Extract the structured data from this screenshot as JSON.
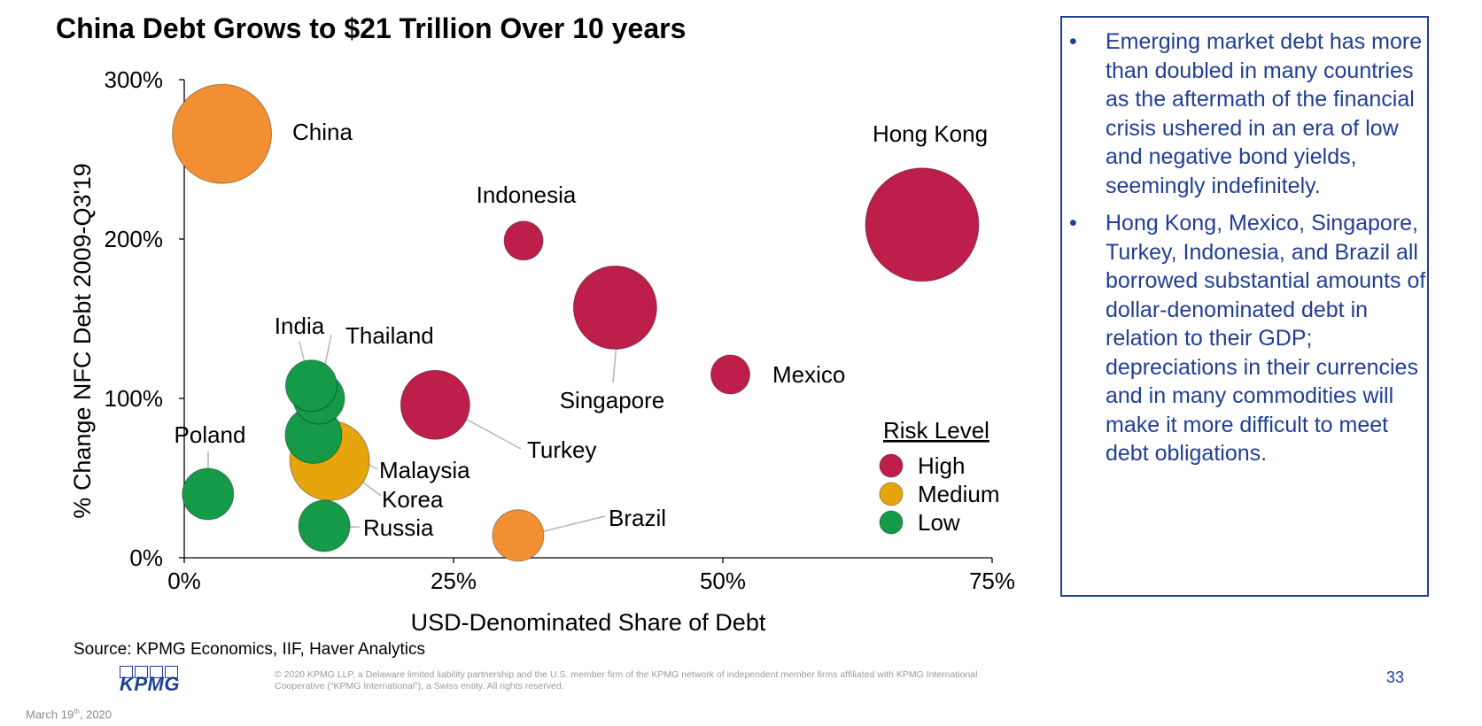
{
  "title": "China Debt Grows to $21 Trillion Over 10 years",
  "chart_data": {
    "type": "bubble",
    "xlabel": "USD-Denominated Share of Debt",
    "ylabel": "% Change NFC Debt 2009-Q3'19",
    "xlim": [
      0,
      75
    ],
    "ylim": [
      0,
      300
    ],
    "x_ticks": [
      "0%",
      "25%",
      "50%",
      "75%"
    ],
    "y_ticks": [
      "0%",
      "100%",
      "200%",
      "300%"
    ],
    "legend_title": "Risk Level",
    "legend": [
      {
        "label": "High",
        "color": "#be1e4a"
      },
      {
        "label": "Medium",
        "color": "#e6a50c"
      },
      {
        "label": "Low",
        "color": "#159a47"
      }
    ],
    "points": [
      {
        "name": "China",
        "x": 3.5,
        "y": 266,
        "size": 56,
        "risk": "Medium",
        "color": "#f28f33"
      },
      {
        "name": "Hong Kong",
        "x": 68.5,
        "y": 209,
        "size": 64,
        "risk": "High",
        "color": "#be1e4a"
      },
      {
        "name": "Indonesia",
        "x": 31.5,
        "y": 199,
        "size": 22,
        "risk": "High",
        "color": "#be1e4a"
      },
      {
        "name": "Singapore",
        "x": 40,
        "y": 157,
        "size": 47,
        "risk": "High",
        "color": "#be1e4a"
      },
      {
        "name": "Mexico",
        "x": 50.7,
        "y": 115,
        "size": 22,
        "risk": "High",
        "color": "#be1e4a"
      },
      {
        "name": "Turkey",
        "x": 23.3,
        "y": 96,
        "size": 39,
        "risk": "High",
        "color": "#be1e4a"
      },
      {
        "name": "Korea",
        "x": 13.5,
        "y": 61,
        "size": 45,
        "risk": "Medium",
        "color": "#e6a50c"
      },
      {
        "name": "Brazil",
        "x": 31,
        "y": 14,
        "size": 29,
        "risk": "Medium",
        "color": "#f28f33"
      },
      {
        "name": "India",
        "x": 11.8,
        "y": 108,
        "size": 29,
        "risk": "Low",
        "color": "#159a47"
      },
      {
        "name": "Thailand",
        "x": 12.5,
        "y": 100,
        "size": 29,
        "risk": "Low",
        "color": "#159a47"
      },
      {
        "name": "Malaysia",
        "x": 12,
        "y": 77,
        "size": 32,
        "risk": "Low",
        "color": "#159a47"
      },
      {
        "name": "Poland",
        "x": 2.2,
        "y": 40,
        "size": 29,
        "risk": "Low",
        "color": "#159a47"
      },
      {
        "name": "Russia",
        "x": 13,
        "y": 20,
        "size": 29,
        "risk": "Low",
        "color": "#159a47"
      }
    ]
  },
  "panel": {
    "bullets": [
      "Emerging market debt has more than doubled in many countries as the aftermath of the financial crisis ushered in an era of low and negative bond yields, seemingly indefinitely.",
      "Hong Kong, Mexico, Singapore, Turkey, Indonesia, and Brazil all borrowed substantial amounts of dollar-denominated debt in relation to their GDP; depreciations in their currencies and in many commodities will make it more difficult to meet debt obligations."
    ]
  },
  "source": "Source: KPMG Economics, IIF, Haver Analytics",
  "logo": "KPMG",
  "legal": "© 2020 KPMG LLP, a Delaware limited liability partnership and the U.S. member firm of the KPMG network of independent member firms affiliated with KPMG International Cooperative (“KPMG International”), a Swiss entity. All rights reserved.",
  "page_number": "33",
  "date": {
    "main": "March 19",
    "suffix": "th",
    "year": ", 2020"
  },
  "colors": {
    "accent_blue": "#1f3f96"
  }
}
